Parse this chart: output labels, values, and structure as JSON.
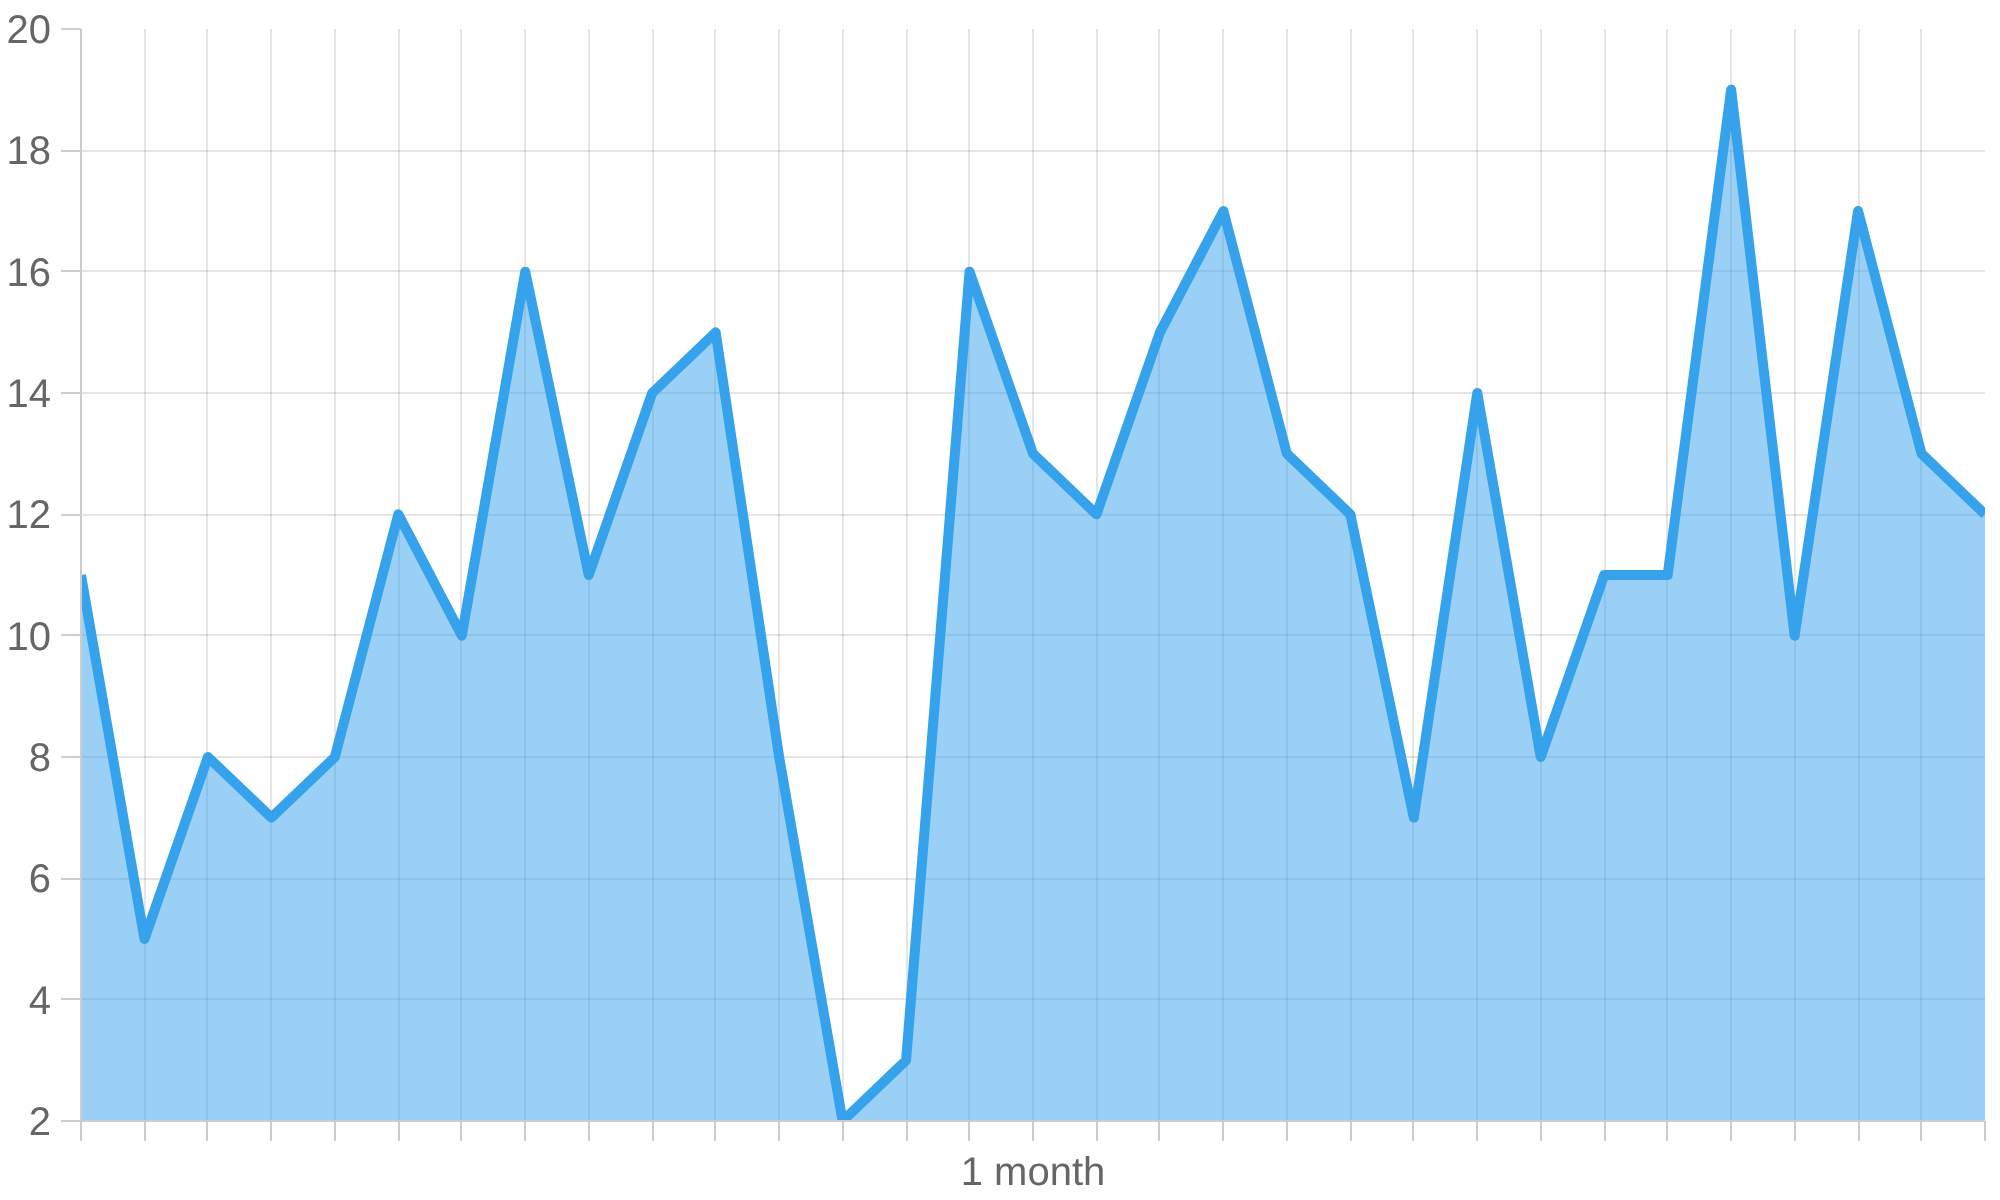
{
  "chart_data": {
    "type": "area",
    "xlabel": "1 month",
    "categories": [
      null,
      null,
      null,
      null,
      null,
      null,
      null,
      null,
      null,
      null,
      null,
      null,
      null,
      null,
      null,
      null,
      null,
      null,
      null,
      null,
      null,
      null,
      null,
      null,
      null,
      null,
      null,
      null,
      null,
      null,
      null
    ],
    "series": [
      {
        "color": "#36a2eb",
        "values": [
          11,
          5,
          8,
          7,
          8,
          12,
          10,
          16,
          11,
          14,
          15,
          8,
          2,
          3,
          16,
          13,
          12,
          15,
          17,
          13,
          12,
          7,
          14,
          8,
          11,
          11,
          19,
          10,
          17,
          13,
          12
        ]
      }
    ],
    "ylim": [
      2,
      20
    ],
    "yticks": [
      2,
      4,
      6,
      8,
      10,
      12,
      14,
      16,
      18,
      20
    ],
    "grid": true,
    "tick_labels": "y"
  }
}
